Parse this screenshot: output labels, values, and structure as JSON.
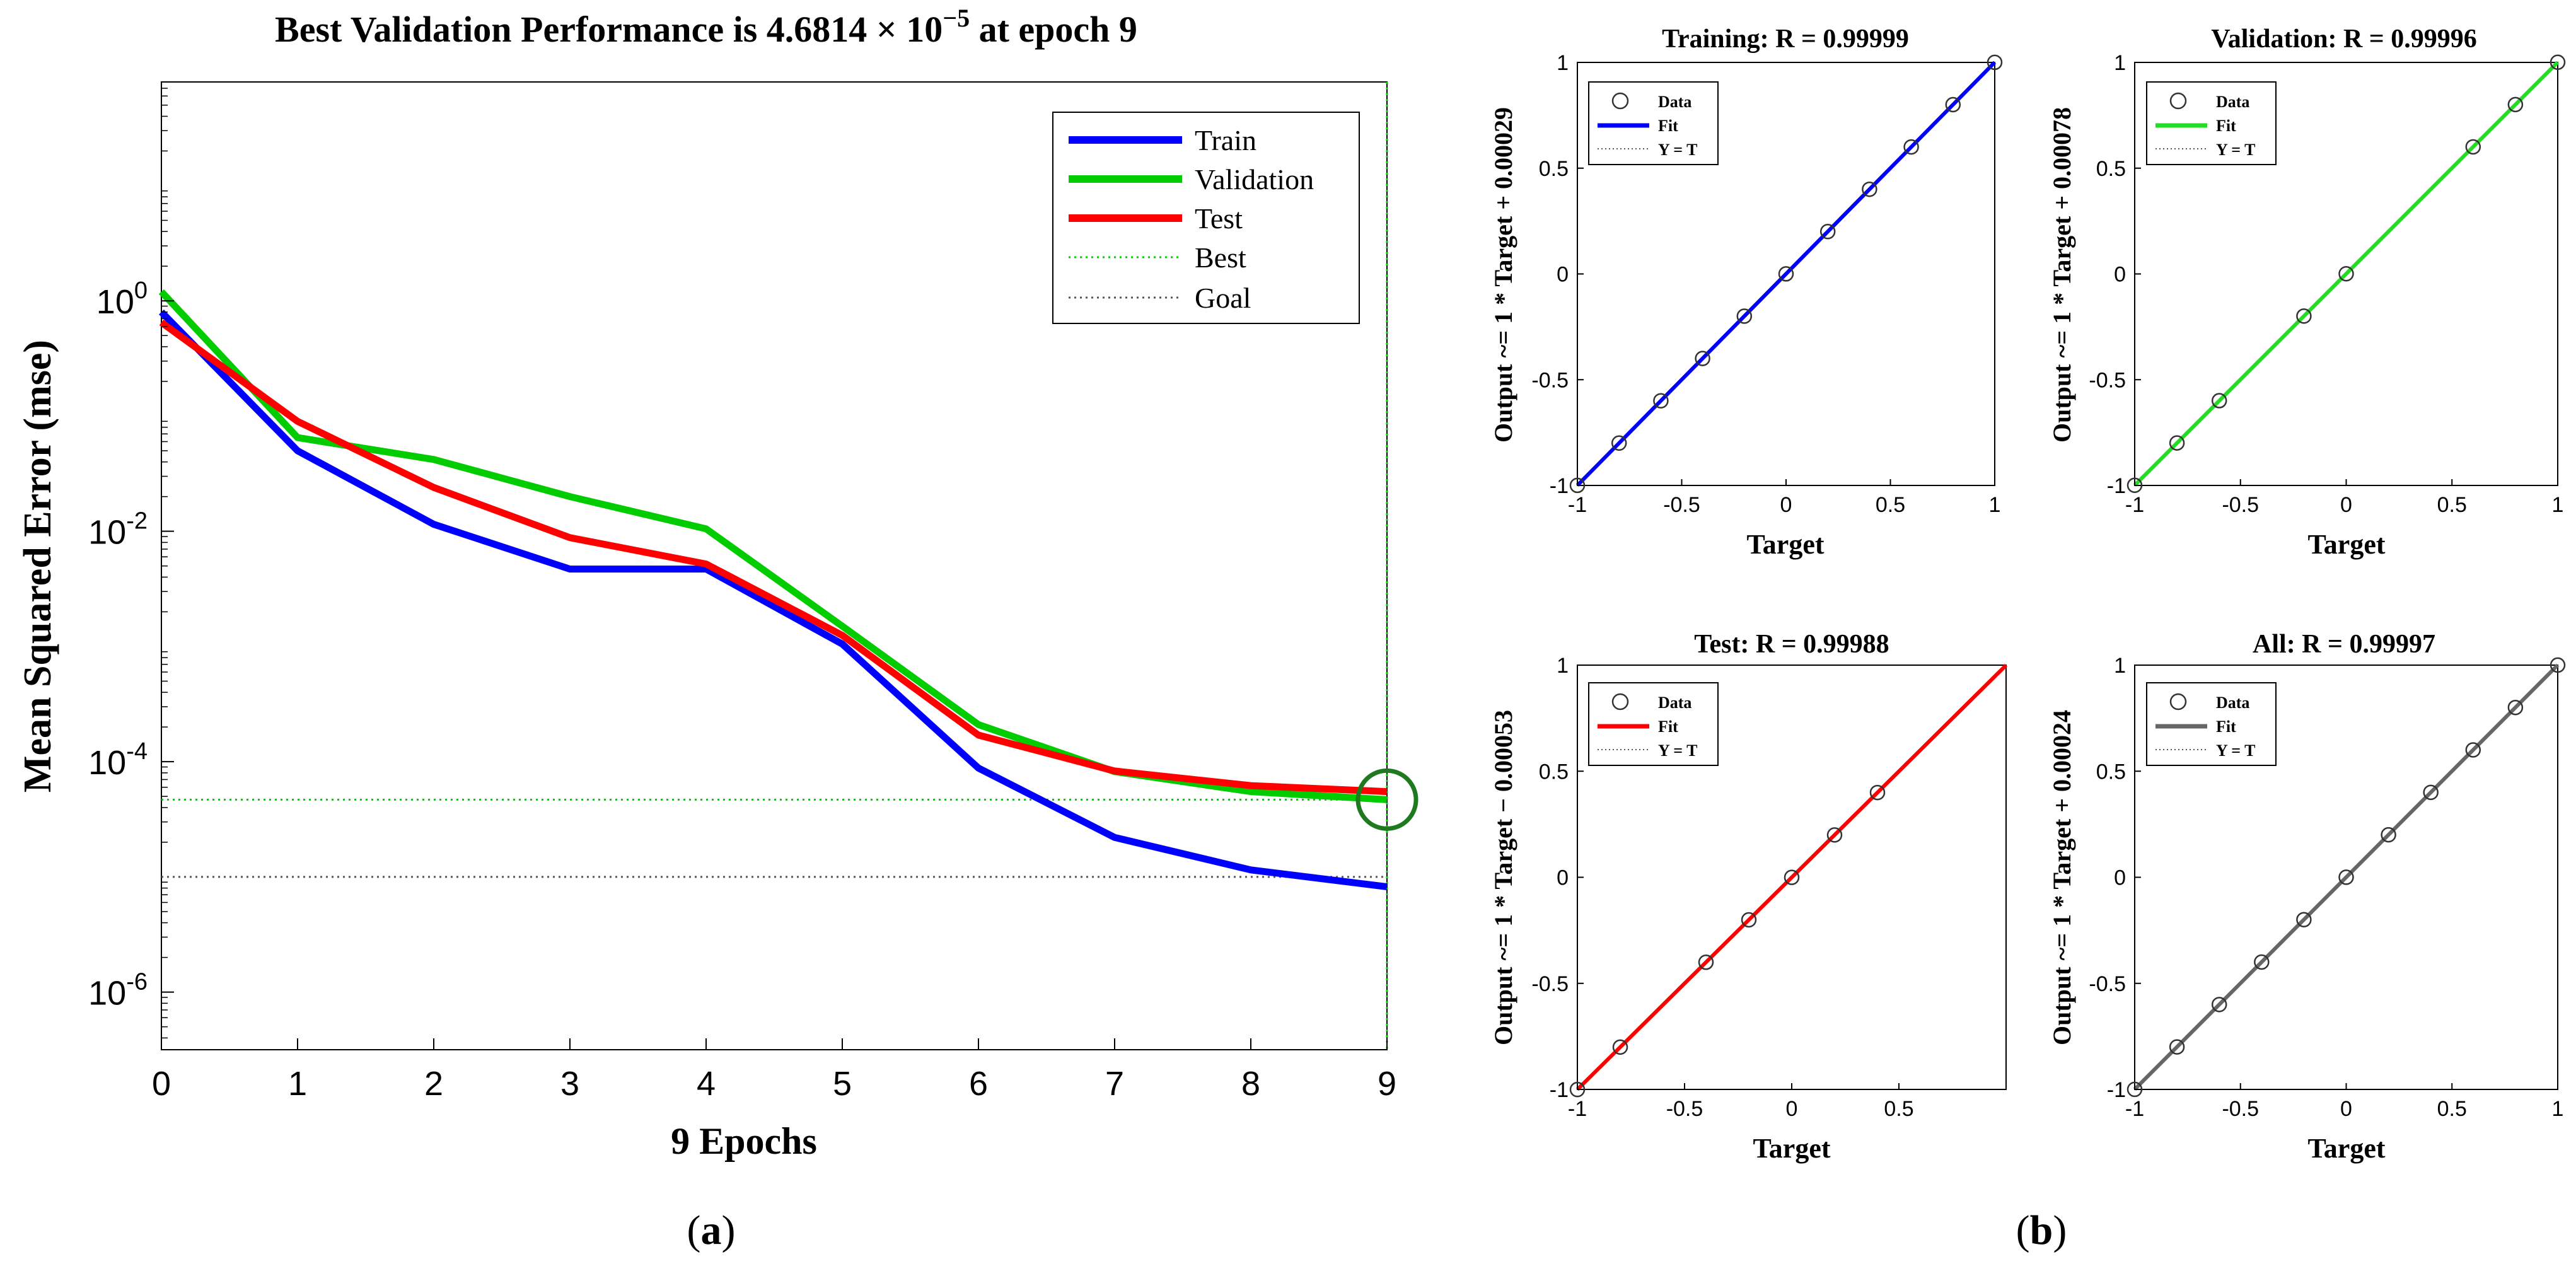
{
  "chart_data": [
    {
      "id": "perf",
      "type": "line",
      "title_prefix": "Best Validation Performance is 4.6814 × 10",
      "title_exp": "−5",
      "title_suffix": " at epoch 9",
      "xlabel": "9 Epochs",
      "ylabel": "Mean Squared Error  (mse)",
      "yscale": "log",
      "xlim": [
        0,
        9
      ],
      "ylim_exp": [
        -6.5,
        1.9
      ],
      "x_ticks": [
        "0",
        "1",
        "2",
        "3",
        "4",
        "5",
        "6",
        "7",
        "8",
        "9"
      ],
      "y_ticks": [
        {
          "value": 1,
          "base": "10",
          "exp": "0"
        },
        {
          "value": 0.01,
          "base": "10",
          "exp": "-2"
        },
        {
          "value": 0.0001,
          "base": "10",
          "exp": "-4"
        },
        {
          "value": 1e-06,
          "base": "10",
          "exp": "-6"
        }
      ],
      "series": [
        {
          "name": "Train",
          "color": "#0000ff",
          "x": [
            0,
            1,
            2,
            3,
            4,
            5,
            6,
            7,
            8,
            9
          ],
          "values": [
            0.8,
            0.05,
            0.0115,
            0.0047,
            0.0047,
            0.00105,
            8.8e-05,
            2.2e-05,
            1.15e-05,
            8.2e-06
          ]
        },
        {
          "name": "Validation",
          "color": "#00cc00",
          "x": [
            0,
            1,
            2,
            3,
            4,
            5,
            6,
            7,
            8,
            9
          ],
          "values": [
            1.2,
            0.065,
            0.042,
            0.02,
            0.0105,
            0.0015,
            0.00021,
            8.2e-05,
            5.5e-05,
            4.6814e-05
          ]
        },
        {
          "name": "Test",
          "color": "#ff0000",
          "x": [
            0,
            1,
            2,
            3,
            4,
            5,
            6,
            7,
            8,
            9
          ],
          "values": [
            0.65,
            0.09,
            0.024,
            0.0088,
            0.0052,
            0.00125,
            0.00017,
            8.3e-05,
            6.2e-05,
            5.5e-05
          ]
        }
      ],
      "best": {
        "name": "Best",
        "epoch": 9,
        "value": 4.6814e-05,
        "color": "#00cc00"
      },
      "goal": {
        "name": "Goal",
        "value": 1e-05,
        "color": "#555555"
      },
      "legend": [
        "Train",
        "Validation",
        "Test",
        "Best",
        "Goal"
      ],
      "legend_position": "top-right"
    },
    {
      "id": "training",
      "type": "scatter",
      "title": "Training: R = 0.99999",
      "xlabel": "Target",
      "ylabel": "Output ~= 1 * Target + 0.00029",
      "fit_color": "#0000ff",
      "slope": 1,
      "intercept": 0.00029,
      "xlim": [
        -1,
        1
      ],
      "ylim": [
        -1,
        1
      ],
      "x_ticks": [
        "-1",
        "-0.5",
        "0",
        "0.5",
        "1"
      ],
      "y_ticks": [
        "1",
        "0.5",
        "0",
        "-0.5",
        "-1"
      ],
      "data_x": [
        -1,
        -0.8,
        -0.6,
        -0.4,
        -0.2,
        0,
        0.2,
        0.4,
        0.6,
        0.8,
        1
      ],
      "legend": [
        "Data",
        "Fit",
        "Y = T"
      ]
    },
    {
      "id": "validation",
      "type": "scatter",
      "title": "Validation: R = 0.99996",
      "xlabel": "Target",
      "ylabel": "Output ~= 1 * Target + 0.00078",
      "fit_color": "#22dd22",
      "slope": 1,
      "intercept": 0.00078,
      "xlim": [
        -1,
        1
      ],
      "ylim": [
        -1,
        1
      ],
      "x_ticks": [
        "-1",
        "-0.5",
        "0",
        "0.5",
        "1"
      ],
      "y_ticks": [
        "1",
        "0.5",
        "0",
        "-0.5",
        "-1"
      ],
      "data_x": [
        -1,
        -0.8,
        -0.6,
        -0.2,
        0,
        0.6,
        0.8,
        1
      ],
      "legend": [
        "Data",
        "Fit",
        "Y = T"
      ]
    },
    {
      "id": "test",
      "type": "scatter",
      "title": "Test: R = 0.99988",
      "xlabel": "Target",
      "ylabel": "Output ~= 1 * Target − 0.00053",
      "fit_color": "#ff0000",
      "slope": 1,
      "intercept": -0.00053,
      "xlim": [
        -1,
        1
      ],
      "ylim": [
        -1,
        1
      ],
      "x_ticks": [
        "-1",
        "-0.5",
        "0",
        "0.5"
      ],
      "y_ticks": [
        "1",
        "0.5",
        "0",
        "-0.5",
        "-1"
      ],
      "data_x": [
        -1,
        -0.8,
        -0.4,
        -0.2,
        0,
        0.2,
        0.4
      ],
      "legend": [
        "Data",
        "Fit",
        "Y = T"
      ]
    },
    {
      "id": "all",
      "type": "scatter",
      "title": "All: R = 0.99997",
      "xlabel": "Target",
      "ylabel": "Output ~= 1 * Target + 0.00024",
      "fit_color": "#666666",
      "slope": 1,
      "intercept": 0.00024,
      "xlim": [
        -1,
        1
      ],
      "ylim": [
        -1,
        1
      ],
      "x_ticks": [
        "-1",
        "-0.5",
        "0",
        "0.5",
        "1"
      ],
      "y_ticks": [
        "1",
        "0.5",
        "0",
        "-0.5",
        "-1"
      ],
      "data_x": [
        -1,
        -0.8,
        -0.6,
        -0.4,
        -0.2,
        0,
        0.2,
        0.4,
        0.6,
        0.8,
        1
      ],
      "legend": [
        "Data",
        "Fit",
        "Y = T"
      ]
    }
  ],
  "captions": {
    "a": "(a)",
    "b": "(b)"
  }
}
